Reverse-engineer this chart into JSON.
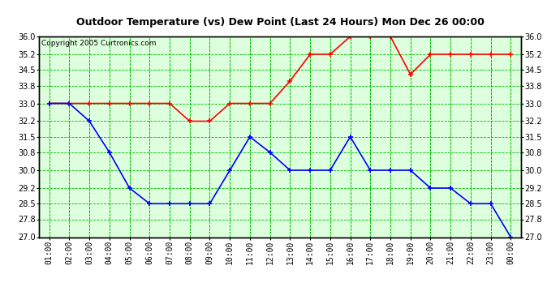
{
  "title": "Outdoor Temperature (vs) Dew Point (Last 24 Hours) Mon Dec 26 00:00",
  "copyright": "Copyright 2005 Curtronics.com",
  "x_labels": [
    "01:00",
    "02:00",
    "03:00",
    "04:00",
    "05:00",
    "06:00",
    "07:00",
    "08:00",
    "09:00",
    "10:00",
    "11:00",
    "12:00",
    "13:00",
    "14:00",
    "15:00",
    "16:00",
    "17:00",
    "18:00",
    "19:00",
    "20:00",
    "21:00",
    "22:00",
    "23:00",
    "00:00"
  ],
  "red_data": [
    33.0,
    33.0,
    33.0,
    33.0,
    33.0,
    33.0,
    33.0,
    32.2,
    32.2,
    33.0,
    33.0,
    33.0,
    34.0,
    35.2,
    35.2,
    36.0,
    36.0,
    36.0,
    34.3,
    35.2,
    35.2,
    35.2,
    35.2,
    35.2
  ],
  "blue_data": [
    33.0,
    33.0,
    32.2,
    30.8,
    29.2,
    28.5,
    28.5,
    28.5,
    28.5,
    30.0,
    31.5,
    30.8,
    30.0,
    30.0,
    30.0,
    31.5,
    30.0,
    30.0,
    30.0,
    29.2,
    29.2,
    28.5,
    28.5,
    27.0
  ],
  "red_color": "#ff0000",
  "blue_color": "#0000ff",
  "bg_color": "#ffffff",
  "plot_bg_color": "#ddffdd",
  "grid_color": "#00bb00",
  "border_color": "#000000",
  "title_color": "#000000",
  "ylim": [
    27.0,
    36.0
  ],
  "yticks": [
    27.0,
    27.8,
    28.5,
    29.2,
    30.0,
    30.8,
    31.5,
    32.2,
    33.0,
    33.8,
    34.5,
    35.2,
    36.0
  ],
  "marker": "+",
  "marker_size": 5,
  "linewidth": 1.2,
  "title_fontsize": 9,
  "tick_fontsize": 7
}
